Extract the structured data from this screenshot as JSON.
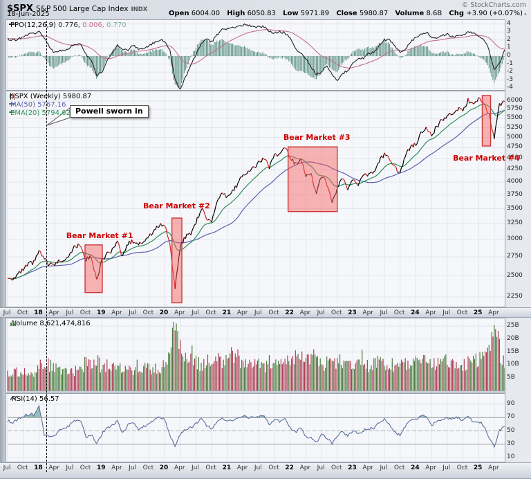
{
  "header": {
    "symbol": "$SPX",
    "name": "S&P 500 Large Cap Index",
    "exchange": "INDX",
    "date": "18-Jun-2025",
    "credit": "© StockCharts.com",
    "quote": {
      "open_label": "Open",
      "open": "6004.00",
      "high_label": "High",
      "high": "6050.83",
      "low_label": "Low",
      "low": "5971.89",
      "close_label": "Close",
      "close": "5980.87",
      "volume_label": "Volume",
      "volume": "8.6B",
      "chg_label": "Chg",
      "chg": "+3.90 (+0.07%)",
      "chg_arrow": "▴"
    }
  },
  "legends": {
    "ppo": {
      "label": "PPO(12,26,9)",
      "v1": "0.776,",
      "v2": "0.006,",
      "v3": "0.770"
    },
    "price": {
      "title": "$SPX (Weekly)",
      "close": "5980.87",
      "ma50_label": "MA(50)",
      "ma50_value": "5767.16",
      "ema20_label": "EMA(20)",
      "ema20_value": "5794.62"
    },
    "volume": {
      "label": "Volume",
      "value": "8,621,474,816"
    },
    "rsi": {
      "label": "RSI(14)",
      "value": "56.57"
    }
  },
  "annotation": {
    "text": "Powell sworn in",
    "month_index": 7.53
  },
  "colors": {
    "candle_up": "#000000",
    "candle_down": "#cc2222",
    "ma50": "#5a5fb0",
    "ema20": "#2e9158",
    "bear_box_fill": "rgba(246,92,92,0.45)",
    "bear_box_stroke": "#cc3a3a",
    "bear_label": "#cc0000",
    "vol_up": "#4e7c40",
    "vol_down": "#ad3a52",
    "ppo_line": "#222222",
    "ppo_signal": "#c47086",
    "ppo_hist": "#689a8d",
    "rsi_line": "#5c6e9e",
    "rsi_fill": "#7fb0a6",
    "rsi_band": "#999999",
    "grid": "#e2e5eb",
    "panel_bg": "#f6f7fa"
  },
  "chart_data": {
    "type": "line",
    "title": "$SPX S&P 500 Large Cap Index — weekly multi-panel chart (PPO, price w/ MA50 & EMA20, volume, RSI)",
    "x_start": "Jul 2017",
    "x_end": "Jun 2025",
    "frequency": "monthly estimates read from weekly chart",
    "x_categories": [
      "Jul",
      "Oct",
      "18",
      "Apr",
      "Jul",
      "Oct",
      "19",
      "Apr",
      "Jul",
      "Oct",
      "20",
      "Apr",
      "Jul",
      "Oct",
      "21",
      "Apr",
      "Jul",
      "Oct",
      "22",
      "Apr",
      "Jul",
      "Oct",
      "23",
      "Apr",
      "Jul",
      "Oct",
      "24",
      "Apr",
      "Jul",
      "Oct",
      "25",
      "Apr"
    ],
    "panels": {
      "ppo": {
        "type": "line",
        "yticks": [
          4,
          3,
          2,
          1,
          0,
          -1,
          -2,
          -3,
          -4
        ],
        "series": [
          2.1,
          2.0,
          2.1,
          2.4,
          2.7,
          2.8,
          3.1,
          2.2,
          1.2,
          0.4,
          0.7,
          0.8,
          1.1,
          1.5,
          1.5,
          0.2,
          -0.6,
          -2.4,
          -2.0,
          -0.6,
          0.4,
          1.4,
          0.9,
          0.7,
          1.3,
          0.9,
          0.9,
          1.2,
          1.7,
          2.0,
          1.9,
          0.8,
          -3.0,
          -4.2,
          -2.6,
          -1.2,
          0.2,
          1.6,
          2.2,
          1.8,
          2.6,
          3.3,
          3.4,
          3.6,
          3.6,
          3.9,
          3.8,
          3.6,
          3.6,
          3.7,
          3.1,
          2.9,
          3.0,
          2.9,
          2.2,
          0.9,
          0.4,
          -0.3,
          -1.3,
          -2.3,
          -2.0,
          -1.2,
          -2.2,
          -3.0,
          -2.2,
          -1.8,
          -0.9,
          -0.2,
          -0.3,
          0.3,
          0.5,
          1.3,
          2.0,
          2.0,
          1.3,
          0.4,
          0.8,
          1.8,
          2.3,
          2.7,
          3.0,
          2.4,
          2.2,
          2.5,
          2.7,
          2.4,
          2.5,
          2.7,
          3.0,
          2.9,
          2.5,
          2.1,
          0.8,
          -1.8,
          -0.9,
          0.78
        ]
      },
      "price": {
        "type": "candlestick",
        "scale": "log",
        "yticks": [
          6000,
          5750,
          5500,
          5250,
          5000,
          4750,
          4500,
          4250,
          4000,
          3750,
          3500,
          3250,
          3000,
          2750,
          2500,
          2250
        ],
        "close": [
          2470,
          2472,
          2519,
          2575,
          2648,
          2674,
          2824,
          2714,
          2641,
          2648,
          2705,
          2718,
          2816,
          2902,
          2914,
          2712,
          2760,
          2440,
          2704,
          2784,
          2834,
          2946,
          2752,
          2942,
          2980,
          2926,
          2977,
          3038,
          3141,
          3231,
          3226,
          2954,
          2320,
          2912,
          3044,
          3100,
          3271,
          3500,
          3363,
          3270,
          3622,
          3756,
          3714,
          3811,
          3973,
          4181,
          4204,
          4298,
          4395,
          4523,
          4308,
          4605,
          4567,
          4766,
          4516,
          4374,
          4530,
          4132,
          4132,
          3785,
          4130,
          3955,
          3586,
          3872,
          4080,
          3840,
          4077,
          3970,
          4109,
          4169,
          4180,
          4450,
          4589,
          4508,
          4288,
          4194,
          4568,
          4770,
          4846,
          5096,
          5254,
          5036,
          5278,
          5460,
          5522,
          5648,
          5762,
          5705,
          6032,
          5882,
          6041,
          5955,
          5612,
          4983,
          5912,
          5981
        ],
        "overlays": [
          "MA(50)",
          "EMA(20)"
        ],
        "bear_markets": [
          {
            "label": "Bear Market #1",
            "from_month_index": 14.8,
            "to_month_index": 18.1,
            "price_top": 2920,
            "price_bottom": 2300,
            "label_month_index": 11.2,
            "label_price": 3050
          },
          {
            "label": "Bear Market #2",
            "from_month_index": 31.4,
            "to_month_index": 33.3,
            "price_top": 3340,
            "price_bottom": 2185,
            "label_month_index": 25.9,
            "label_price": 3545
          },
          {
            "label": "Bear Market #3",
            "from_month_index": 53.6,
            "to_month_index": 63.0,
            "price_top": 4770,
            "price_bottom": 3450,
            "label_month_index": 52.7,
            "label_price": 4990
          },
          {
            "label": "Bear Market #4",
            "from_month_index": 90.7,
            "to_month_index": 92.3,
            "price_top": 6170,
            "price_bottom": 4790,
            "label_month_index": 85.1,
            "label_price": 4500
          }
        ]
      },
      "volume": {
        "type": "bar",
        "ytick_labels": [
          "25B",
          "20B",
          "15B",
          "10B",
          "5B"
        ],
        "yticks_billions": [
          25,
          20,
          15,
          10,
          5
        ],
        "values_billions": [
          7,
          7,
          7.5,
          7.5,
          8,
          7.5,
          9,
          11,
          10,
          9,
          8.5,
          9,
          8,
          8,
          8.5,
          11,
          10,
          12,
          9,
          9.5,
          9.5,
          8.5,
          9.5,
          9,
          8.5,
          10,
          9,
          8.5,
          8.5,
          9,
          9.5,
          13,
          26,
          17,
          13,
          15,
          11,
          10,
          12,
          10.5,
          12,
          11.5,
          14,
          13.5,
          13,
          10,
          10.5,
          11,
          10,
          9.5,
          11,
          10.5,
          11.5,
          11,
          13.5,
          13,
          13,
          12,
          13.5,
          13.5,
          11,
          10.5,
          11.5,
          11.5,
          11,
          10.5,
          11,
          11,
          13,
          10,
          10.5,
          11,
          10,
          10.5,
          10,
          10.5,
          10.5,
          10.5,
          11,
          11,
          11,
          10.5,
          11,
          11,
          11.5,
          11,
          11,
          10.5,
          11,
          11.5,
          12,
          12.5,
          14,
          25,
          16,
          9
        ]
      },
      "rsi": {
        "type": "line",
        "yticks": [
          90,
          70,
          50,
          30,
          10
        ],
        "overbought": 70,
        "oversold": 30,
        "midline": 50,
        "values": [
          65,
          63,
          67,
          72,
          75,
          74,
          88,
          45,
          40,
          42,
          52,
          53,
          60,
          66,
          65,
          40,
          45,
          31,
          45,
          55,
          58,
          66,
          46,
          60,
          63,
          53,
          57,
          61,
          67,
          71,
          68,
          45,
          25,
          45,
          52,
          55,
          61,
          68,
          58,
          53,
          65,
          69,
          64,
          67,
          69,
          73,
          70,
          71,
          72,
          73,
          60,
          68,
          64,
          69,
          55,
          48,
          54,
          42,
          40,
          32,
          45,
          40,
          31,
          42,
          49,
          42,
          50,
          46,
          51,
          54,
          54,
          63,
          67,
          58,
          48,
          43,
          57,
          66,
          68,
          71,
          73,
          58,
          64,
          68,
          69,
          68,
          70,
          66,
          72,
          62,
          65,
          58,
          40,
          26,
          50,
          56.57
        ]
      }
    }
  }
}
